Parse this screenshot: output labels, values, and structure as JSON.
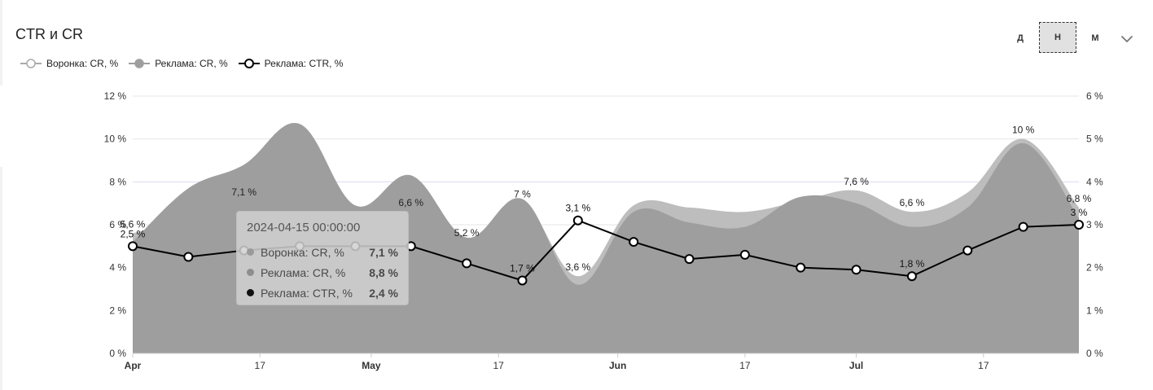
{
  "header": {
    "title": "CTR и CR",
    "period_buttons": [
      "Д",
      "Н",
      "М"
    ],
    "active_period": "Н"
  },
  "legend": [
    {
      "label": "Воронка: CR, %",
      "style": "hollow-gray"
    },
    {
      "label": "Реклама: CR, %",
      "style": "filled-gray"
    },
    {
      "label": "Реклама: CTR, %",
      "style": "hollow-black"
    }
  ],
  "colors": {
    "funnel_cr_area": "#bdbdbd",
    "ads_cr_area": "#9e9e9e",
    "ctr_line": "#000000",
    "grid": "#e6e6e6",
    "axis_text": "#333333"
  },
  "tooltip": {
    "date": "2024-04-15 00:00:00",
    "rows": [
      {
        "label": "Воронка: CR, %",
        "value": "7,1 %",
        "color": "#9a9a9a"
      },
      {
        "label": "Реклама: CR, %",
        "value": "8,8 %",
        "color": "#8e8e8e"
      },
      {
        "label": "Реклама: CTR, %",
        "value": "2,4 %",
        "color": "#111111"
      }
    ]
  },
  "chart_data": {
    "type": "area",
    "x": [
      "2024-04-01",
      "2024-04-08",
      "2024-04-15",
      "2024-04-22",
      "2024-04-29",
      "2024-05-06",
      "2024-05-13",
      "2024-05-20",
      "2024-05-27",
      "2024-06-03",
      "2024-06-10",
      "2024-06-17",
      "2024-06-24",
      "2024-07-01",
      "2024-07-08",
      "2024-07-15",
      "2024-07-22",
      "2024-07-29"
    ],
    "x_ticks": [
      "Apr",
      "17",
      "May",
      "17",
      "Jun",
      "17",
      "Jul",
      "17"
    ],
    "y_left": {
      "ticks": [
        "0 %",
        "2 %",
        "4 %",
        "6 %",
        "8 %",
        "10 %",
        "12 %"
      ],
      "ylim": [
        0,
        12
      ]
    },
    "y_right": {
      "ticks": [
        "0 %",
        "1 %",
        "2 %",
        "3 %",
        "4 %",
        "5 %",
        "6 %"
      ],
      "ylim": [
        0,
        6
      ]
    },
    "grid": true,
    "legend_position": "top-left",
    "series": [
      {
        "name": "Воронка: CR, %",
        "axis": "left",
        "type": "area",
        "values": [
          5.6,
          6.3,
          7.1,
          7.0,
          6.0,
          6.6,
          5.2,
          7.0,
          3.6,
          6.9,
          6.8,
          6.6,
          7.1,
          7.6,
          6.6,
          7.5,
          10.0,
          6.8
        ],
        "labels": [
          "5,6 %",
          "",
          "7,1 %",
          "",
          "",
          "6,6 %",
          "5,2 %",
          "7 %",
          "3,6 %",
          "",
          "",
          "",
          "",
          "7,6 %",
          "6,6 %",
          "",
          "10 %",
          "6,8 %"
        ]
      },
      {
        "name": "Реклама: CR, %",
        "axis": "left",
        "type": "area",
        "values": [
          5.2,
          7.7,
          8.8,
          10.7,
          6.9,
          8.3,
          5.4,
          7.2,
          3.2,
          6.6,
          6.1,
          5.9,
          7.3,
          7.0,
          5.9,
          6.8,
          9.8,
          6.3
        ],
        "labels": []
      },
      {
        "name": "Реклама: CTR, %",
        "axis": "right",
        "type": "line",
        "values": [
          2.5,
          2.25,
          2.4,
          2.5,
          2.5,
          2.5,
          2.1,
          1.7,
          3.1,
          2.6,
          2.2,
          2.3,
          2.0,
          1.95,
          1.8,
          2.4,
          2.95,
          3.0
        ],
        "labels": [
          "2,5 %",
          "",
          "",
          "",
          "",
          "",
          "",
          "1,7 %",
          "3,1 %",
          "",
          "",
          "",
          "",
          "",
          "1,8 %",
          "",
          "",
          "3 %"
        ]
      }
    ]
  }
}
